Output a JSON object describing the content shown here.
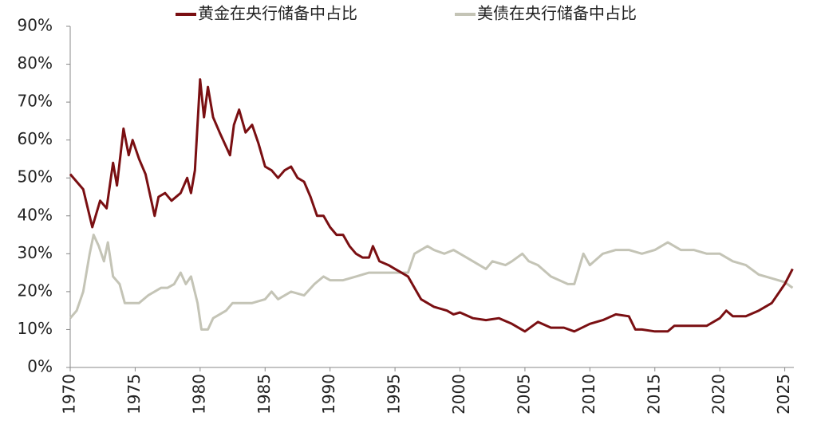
{
  "chart_data": {
    "type": "line",
    "xlim": [
      1970,
      2025.7
    ],
    "xticks": [
      1970,
      1975,
      1980,
      1985,
      1990,
      1995,
      2000,
      2005,
      2010,
      2015,
      2020,
      2025
    ],
    "ylim": [
      0,
      90
    ],
    "yticks": [
      {
        "value": 0,
        "label": "0%"
      },
      {
        "value": 10,
        "label": "10%"
      },
      {
        "value": 20,
        "label": "20%"
      },
      {
        "value": 30,
        "label": "30%"
      },
      {
        "value": 40,
        "label": "40%"
      },
      {
        "value": 50,
        "label": "50%"
      },
      {
        "value": 60,
        "label": "60%"
      },
      {
        "value": 70,
        "label": "70%"
      },
      {
        "value": 80,
        "label": "80%"
      },
      {
        "value": 90,
        "label": "90%"
      }
    ],
    "legend": "top",
    "series": [
      {
        "name": "黄金在央行储备中占比",
        "color": "#7a0f12",
        "x": [
          1970,
          1971,
          1971.7,
          1972.3,
          1972.8,
          1973.3,
          1973.6,
          1974.1,
          1974.5,
          1974.8,
          1975.3,
          1975.8,
          1976.5,
          1976.8,
          1977.3,
          1977.8,
          1978.5,
          1979,
          1979.3,
          1979.6,
          1980,
          1980.3,
          1980.6,
          1981,
          1981.5,
          1982.3,
          1982.6,
          1983,
          1983.5,
          1984,
          1984.5,
          1985,
          1985.5,
          1986,
          1986.5,
          1987,
          1987.5,
          1988,
          1988.5,
          1989,
          1989.5,
          1990,
          1990.5,
          1991,
          1991.5,
          1992,
          1992.5,
          1993,
          1993.3,
          1993.8,
          1994.5,
          1995,
          1995.5,
          1996,
          1996.5,
          1997,
          1997.5,
          1998,
          1999,
          1999.5,
          2000,
          2001,
          2002,
          2003,
          2004,
          2005,
          2006,
          2007,
          2008,
          2008.8,
          2010,
          2011,
          2012,
          2013,
          2013.5,
          2014,
          2015,
          2016,
          2016.5,
          2018,
          2019,
          2020,
          2020.5,
          2021,
          2022,
          2023,
          2024,
          2025,
          2025.6
        ],
        "values": [
          51,
          47,
          37,
          44,
          42,
          54,
          48,
          63,
          56,
          60,
          55,
          51,
          40,
          45,
          46,
          44,
          46,
          50,
          46,
          52,
          76,
          66,
          74,
          66,
          62,
          56,
          64,
          68,
          62,
          64,
          59,
          53,
          52,
          50,
          52,
          53,
          50,
          49,
          45,
          40,
          40,
          37,
          35,
          35,
          32,
          30,
          29,
          29,
          32,
          28,
          27,
          26,
          25,
          24,
          21,
          18,
          17,
          16,
          15,
          14,
          14.5,
          13,
          12.5,
          13,
          11.5,
          9.5,
          12,
          10.5,
          10.5,
          9.5,
          11.5,
          12.5,
          14,
          13.5,
          10,
          10,
          9.5,
          9.5,
          11,
          11,
          11,
          13,
          15,
          13.5,
          13.5,
          15,
          17,
          22,
          26
        ]
      },
      {
        "name": "美债在央行储备中占比",
        "color": "#c4c4b6",
        "x": [
          1970,
          1970.5,
          1971,
          1971.5,
          1971.8,
          1972.2,
          1972.6,
          1972.9,
          1973.3,
          1973.8,
          1974.2,
          1974.8,
          1975.3,
          1976,
          1977,
          1977.5,
          1978,
          1978.5,
          1978.9,
          1979.3,
          1979.8,
          1980.1,
          1980.6,
          1981,
          1982,
          1982.5,
          1983,
          1984,
          1985,
          1985.5,
          1986,
          1987,
          1988,
          1988.8,
          1989.5,
          1990,
          1991,
          1992,
          1993,
          1994,
          1995,
          1996,
          1996.5,
          1997.5,
          1998,
          1998.8,
          1999.5,
          2000.5,
          2001,
          2002,
          2002.5,
          2003.5,
          2004,
          2004.8,
          2005.3,
          2006,
          2007,
          2008.3,
          2008.8,
          2009.5,
          2010,
          2011,
          2012,
          2013,
          2014,
          2015,
          2016,
          2017,
          2018,
          2019,
          2020,
          2021,
          2022,
          2023,
          2024,
          2025,
          2025.6
        ],
        "values": [
          13,
          15,
          20,
          30,
          35,
          32,
          28,
          33,
          24,
          22,
          17,
          17,
          17,
          19,
          21,
          21,
          22,
          25,
          22,
          24,
          17,
          10,
          10,
          13,
          15,
          17,
          17,
          17,
          18,
          20,
          18,
          20,
          19,
          22,
          24,
          23,
          23,
          24,
          25,
          25,
          25,
          25,
          30,
          32,
          31,
          30,
          31,
          29,
          28,
          26,
          28,
          27,
          28,
          30,
          28,
          27,
          24,
          22,
          22,
          30,
          27,
          30,
          31,
          31,
          30,
          31,
          33,
          31,
          31,
          30,
          30,
          28,
          27,
          24.5,
          23.5,
          22.5,
          21
        ]
      }
    ]
  }
}
